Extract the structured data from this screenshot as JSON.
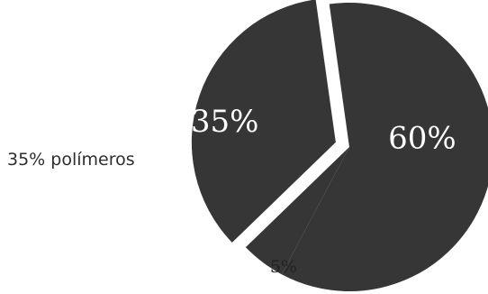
{
  "side_label": "35% polímeros",
  "chart_data": {
    "type": "pie",
    "slices": [
      {
        "label": "60%",
        "value": 60
      },
      {
        "label": "5%",
        "value": 5
      },
      {
        "label": "35%",
        "value": 35
      }
    ],
    "slice_color": "#363636",
    "background": "#ffffff"
  }
}
